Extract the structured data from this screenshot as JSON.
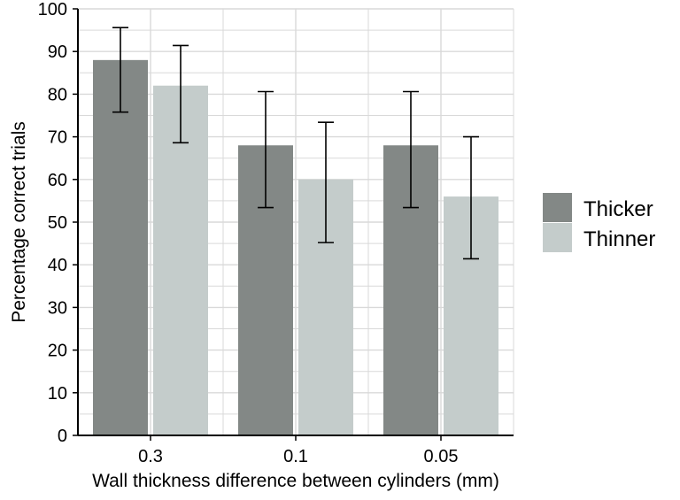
{
  "chart_data": {
    "type": "bar",
    "title": "",
    "xlabel": "Wall thickness difference between cylinders (mm)",
    "ylabel": "Percentage correct trials",
    "categories": [
      "0.3",
      "0.1",
      "0.05"
    ],
    "series": [
      {
        "name": "Thicker",
        "color": "#838886",
        "values": [
          88,
          68,
          68
        ],
        "error_low": [
          75.8,
          53.4,
          53.4
        ],
        "error_high": [
          95.6,
          80.6,
          80.6
        ]
      },
      {
        "name": "Thinner",
        "color": "#c4cccb",
        "values": [
          82,
          60,
          56
        ],
        "error_low": [
          68.6,
          45.2,
          41.4
        ],
        "error_high": [
          91.4,
          73.4,
          70
        ]
      }
    ],
    "ylim": [
      0,
      100
    ],
    "yticks": [
      0,
      10,
      20,
      30,
      40,
      50,
      60,
      70,
      80,
      90,
      100
    ],
    "grid": true,
    "legend_position": "right"
  }
}
